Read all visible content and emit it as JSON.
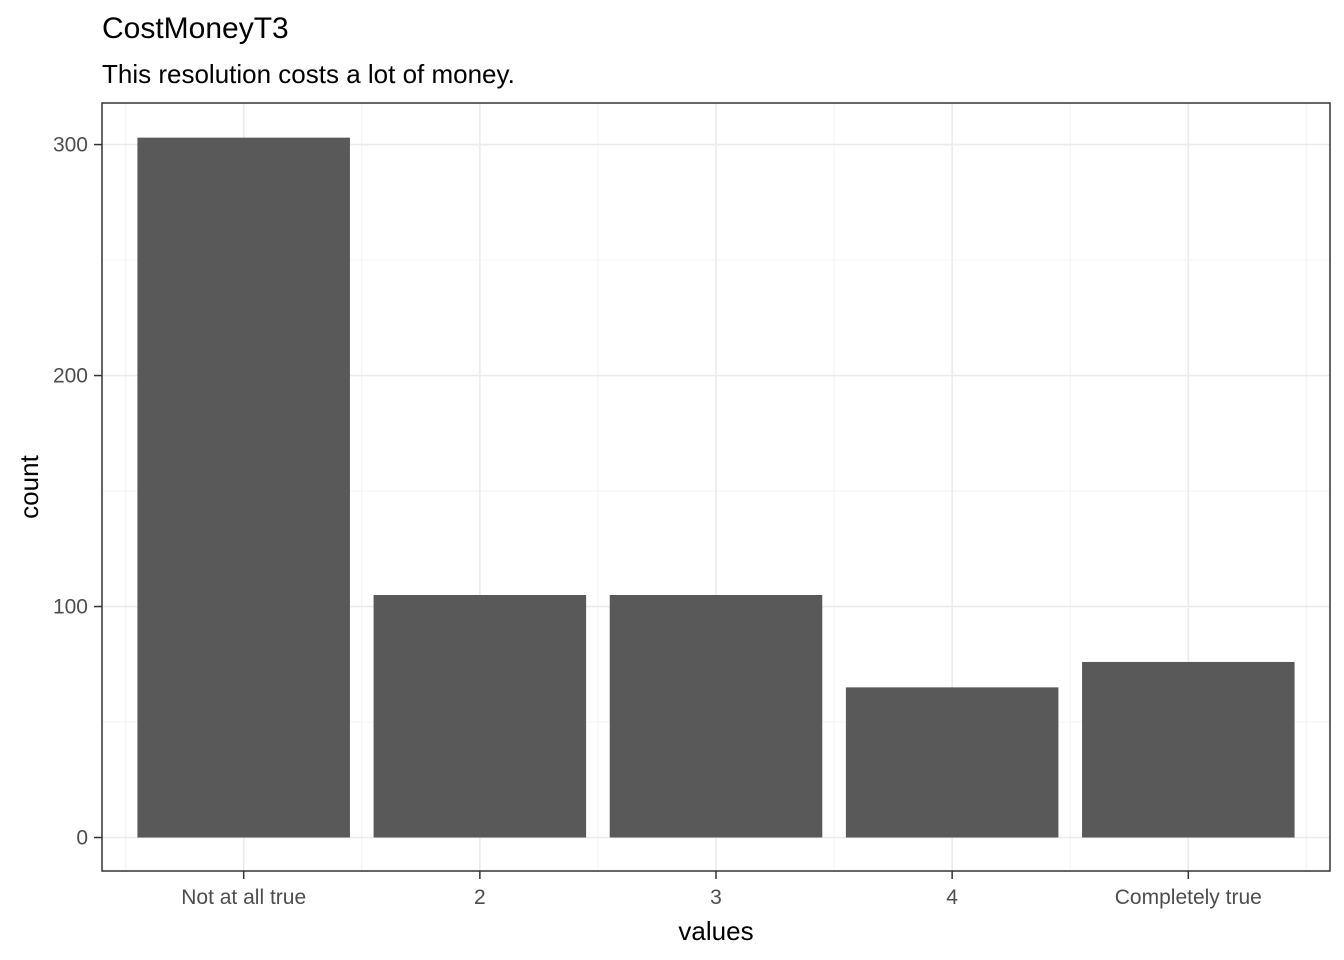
{
  "chart_data": {
    "type": "bar",
    "title": "CostMoneyT3",
    "subtitle": "This resolution costs a lot of money.",
    "xlabel": "values",
    "ylabel": "count",
    "categories": [
      "Not at all true",
      "2",
      "3",
      "4",
      "Completely true"
    ],
    "values": [
      303,
      105,
      105,
      65,
      76
    ],
    "ylim": [
      -14.5,
      318
    ],
    "yticks": [
      0,
      100,
      200,
      300
    ],
    "grid": true,
    "theme": "bw",
    "colors": {
      "bar": "#595959",
      "grid_major": "#ebebeb",
      "grid_minor": "#f5f5f5",
      "panel_border": "#333333",
      "tick_label": "#4d4d4d",
      "text": "#000000"
    }
  }
}
